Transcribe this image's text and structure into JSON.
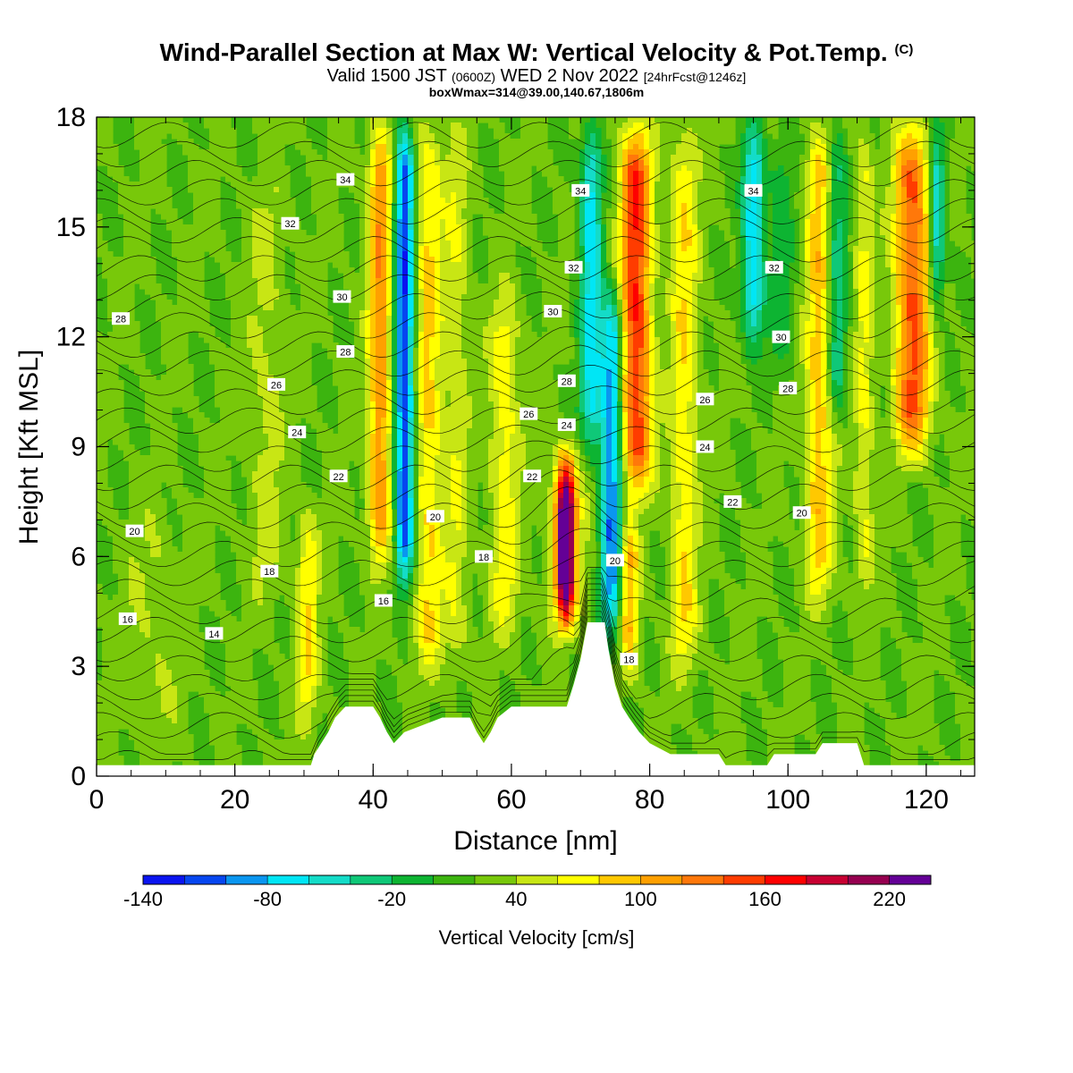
{
  "title": {
    "main": "Wind-Parallel Section at Max W: Vertical Velocity & Pot.Temp.",
    "copyright": "(C)",
    "valid_prefix": "Valid 1500 JST",
    "valid_utc": "(0600Z)",
    "valid_date": "WED 2 Nov 2022",
    "forecast": "[24hrFcst@1246z]",
    "boxline": "boxWmax=314@39.00,140.67,1806m"
  },
  "chart_data": {
    "type": "heatmap",
    "xlabel": "Distance [nm]",
    "ylabel": "Height [Kft MSL]",
    "xlim": [
      0,
      127
    ],
    "ylim": [
      0,
      18
    ],
    "x_ticks": [
      0,
      20,
      40,
      60,
      80,
      100,
      120
    ],
    "y_ticks": [
      0,
      3,
      6,
      9,
      12,
      15,
      18
    ],
    "colorbar": {
      "label": "Vertical Velocity [cm/s]",
      "tick_labels": [
        "-140",
        "-80",
        "-20",
        "40",
        "100",
        "160",
        "220"
      ],
      "colors": [
        "#0a14f0",
        "#0646f0",
        "#0a96f0",
        "#00e6f5",
        "#14dcc8",
        "#0fc878",
        "#0db432",
        "#3cb40f",
        "#78c80a",
        "#c8e614",
        "#ffff00",
        "#ffc800",
        "#ffa000",
        "#ff780a",
        "#ff3c00",
        "#ff0000",
        "#c80032",
        "#960050",
        "#640096"
      ]
    },
    "theta_labels": [
      {
        "x": 3.5,
        "y": 12.5,
        "label": "28"
      },
      {
        "x": 28,
        "y": 15.1,
        "label": "32"
      },
      {
        "x": 36,
        "y": 16.3,
        "label": "34"
      },
      {
        "x": 35.5,
        "y": 13.1,
        "label": "30"
      },
      {
        "x": 36,
        "y": 11.6,
        "label": "28"
      },
      {
        "x": 26,
        "y": 10.7,
        "label": "26"
      },
      {
        "x": 29,
        "y": 9.4,
        "label": "24"
      },
      {
        "x": 35,
        "y": 8.2,
        "label": "22"
      },
      {
        "x": 5.5,
        "y": 6.7,
        "label": "20"
      },
      {
        "x": 25,
        "y": 5.6,
        "label": "18"
      },
      {
        "x": 4.5,
        "y": 4.3,
        "label": "16"
      },
      {
        "x": 17,
        "y": 3.9,
        "label": "14"
      },
      {
        "x": 41.5,
        "y": 4.8,
        "label": "16"
      },
      {
        "x": 49,
        "y": 7.1,
        "label": "20"
      },
      {
        "x": 56,
        "y": 6.0,
        "label": "18"
      },
      {
        "x": 63,
        "y": 8.2,
        "label": "22"
      },
      {
        "x": 62.5,
        "y": 9.9,
        "label": "26"
      },
      {
        "x": 66,
        "y": 12.7,
        "label": "30"
      },
      {
        "x": 69,
        "y": 13.9,
        "label": "32"
      },
      {
        "x": 70,
        "y": 16.0,
        "label": "34"
      },
      {
        "x": 68,
        "y": 10.8,
        "label": "28"
      },
      {
        "x": 68,
        "y": 9.6,
        "label": "24"
      },
      {
        "x": 75,
        "y": 5.9,
        "label": "20"
      },
      {
        "x": 77,
        "y": 3.2,
        "label": "18"
      },
      {
        "x": 88,
        "y": 10.3,
        "label": "26"
      },
      {
        "x": 88,
        "y": 9.0,
        "label": "24"
      },
      {
        "x": 92,
        "y": 7.5,
        "label": "22"
      },
      {
        "x": 95,
        "y": 16.0,
        "label": "34"
      },
      {
        "x": 98,
        "y": 13.9,
        "label": "32"
      },
      {
        "x": 99,
        "y": 12.0,
        "label": "30"
      },
      {
        "x": 100,
        "y": 10.6,
        "label": "28"
      },
      {
        "x": 102,
        "y": 7.2,
        "label": "20"
      }
    ]
  }
}
